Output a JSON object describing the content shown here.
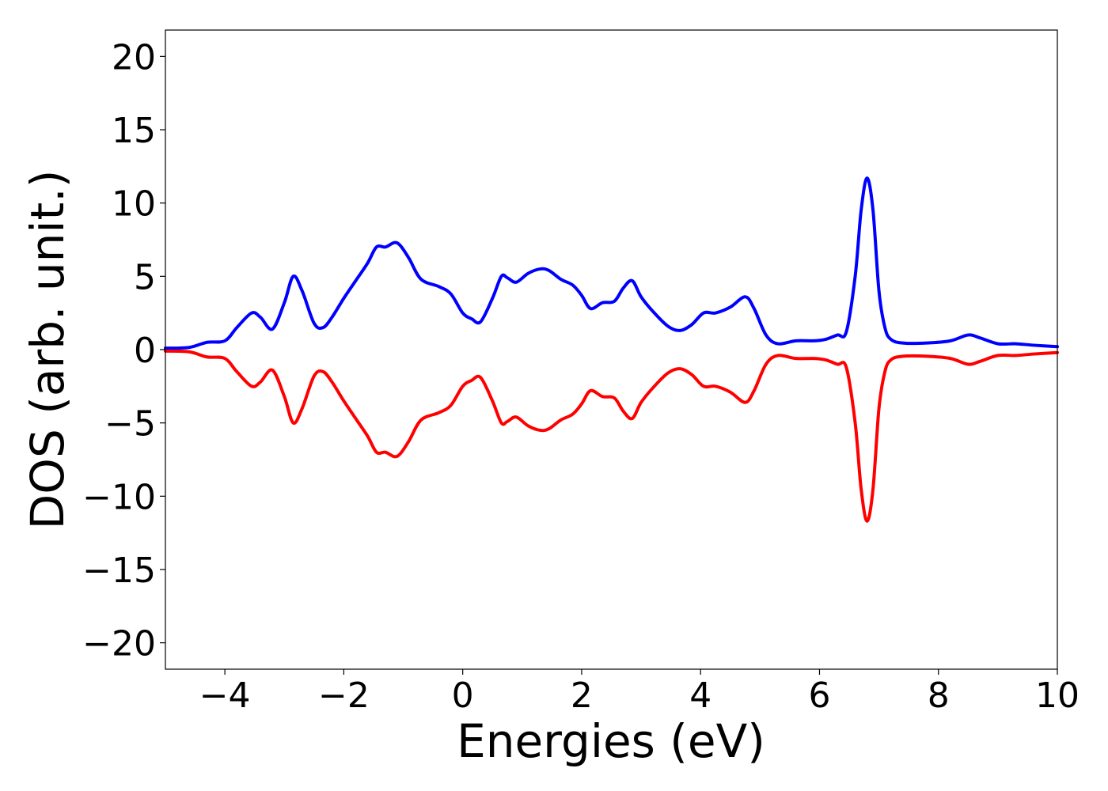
{
  "chart_data": {
    "type": "line",
    "title": "",
    "xlabel": "Energies (eV)",
    "ylabel": "DOS (arb. unit.)",
    "xlim": [
      -5,
      10
    ],
    "ylim": [
      -21.8,
      21.8
    ],
    "xticks": [
      -4,
      -2,
      0,
      2,
      4,
      6,
      8,
      10
    ],
    "yticks": [
      -20,
      -15,
      -10,
      -5,
      0,
      5,
      10,
      15,
      20
    ],
    "xtick_labels": [
      "−4",
      "−2",
      "0",
      "2",
      "4",
      "6",
      "8",
      "10"
    ],
    "ytick_labels": [
      "−20",
      "−15",
      "−10",
      "−5",
      "0",
      "5",
      "10",
      "15",
      "20"
    ],
    "grid": false,
    "legend": "none",
    "series": [
      {
        "color": "#0000ff",
        "x": [
          -5.0,
          -4.6,
          -4.3,
          -4.0,
          -3.8,
          -3.55,
          -3.4,
          -3.2,
          -3.0,
          -2.85,
          -2.7,
          -2.5,
          -2.35,
          -2.2,
          -2.0,
          -1.8,
          -1.6,
          -1.45,
          -1.3,
          -1.15,
          -1.05,
          -0.9,
          -0.7,
          -0.4,
          -0.2,
          0.0,
          0.15,
          0.3,
          0.5,
          0.65,
          0.75,
          0.9,
          1.1,
          1.3,
          1.45,
          1.65,
          1.85,
          2.0,
          2.15,
          2.35,
          2.55,
          2.7,
          2.85,
          3.0,
          3.2,
          3.45,
          3.65,
          3.85,
          4.05,
          4.25,
          4.5,
          4.75,
          4.9,
          5.1,
          5.3,
          5.6,
          5.9,
          6.1,
          6.3,
          6.45,
          6.6,
          6.7,
          6.8,
          6.9,
          7.0,
          7.1,
          7.2,
          7.4,
          7.8,
          8.2,
          8.5,
          8.7,
          9.0,
          9.3,
          9.6,
          10.0
        ],
        "values": [
          0.1,
          0.15,
          0.5,
          0.6,
          1.5,
          2.5,
          2.2,
          1.4,
          3.2,
          5.0,
          4.0,
          1.8,
          1.5,
          2.2,
          3.5,
          4.7,
          5.9,
          7.0,
          7.0,
          7.3,
          7.1,
          6.2,
          4.8,
          4.3,
          3.8,
          2.5,
          2.1,
          1.9,
          3.5,
          5.0,
          4.9,
          4.6,
          5.2,
          5.5,
          5.4,
          4.8,
          4.4,
          3.7,
          2.8,
          3.2,
          3.3,
          4.2,
          4.7,
          3.6,
          2.6,
          1.6,
          1.3,
          1.7,
          2.5,
          2.5,
          2.9,
          3.6,
          2.8,
          1.0,
          0.4,
          0.6,
          0.6,
          0.7,
          1.0,
          1.2,
          5.0,
          9.5,
          11.7,
          9.5,
          4.0,
          1.5,
          0.7,
          0.45,
          0.45,
          0.6,
          1.0,
          0.8,
          0.4,
          0.4,
          0.3,
          0.2
        ]
      },
      {
        "color": "#ff0000",
        "x": [
          -5.0,
          -4.6,
          -4.3,
          -4.0,
          -3.8,
          -3.55,
          -3.4,
          -3.2,
          -3.0,
          -2.85,
          -2.7,
          -2.5,
          -2.35,
          -2.2,
          -2.0,
          -1.8,
          -1.6,
          -1.45,
          -1.3,
          -1.15,
          -1.05,
          -0.9,
          -0.7,
          -0.4,
          -0.2,
          0.0,
          0.15,
          0.3,
          0.5,
          0.65,
          0.75,
          0.9,
          1.1,
          1.3,
          1.45,
          1.65,
          1.85,
          2.0,
          2.15,
          2.35,
          2.55,
          2.7,
          2.85,
          3.0,
          3.2,
          3.45,
          3.65,
          3.85,
          4.05,
          4.25,
          4.5,
          4.75,
          4.9,
          5.1,
          5.3,
          5.6,
          5.9,
          6.1,
          6.3,
          6.45,
          6.6,
          6.7,
          6.8,
          6.9,
          7.0,
          7.1,
          7.2,
          7.4,
          7.8,
          8.2,
          8.5,
          8.7,
          9.0,
          9.3,
          9.6,
          10.0
        ],
        "values": [
          -0.1,
          -0.15,
          -0.5,
          -0.6,
          -1.5,
          -2.5,
          -2.2,
          -1.4,
          -3.2,
          -5.0,
          -4.0,
          -1.8,
          -1.5,
          -2.2,
          -3.5,
          -4.7,
          -5.9,
          -7.0,
          -7.0,
          -7.3,
          -7.1,
          -6.2,
          -4.8,
          -4.3,
          -3.8,
          -2.5,
          -2.1,
          -1.9,
          -3.5,
          -5.0,
          -4.9,
          -4.6,
          -5.2,
          -5.5,
          -5.4,
          -4.8,
          -4.4,
          -3.7,
          -2.8,
          -3.2,
          -3.3,
          -4.2,
          -4.7,
          -3.6,
          -2.6,
          -1.6,
          -1.3,
          -1.7,
          -2.5,
          -2.5,
          -2.9,
          -3.6,
          -2.8,
          -1.0,
          -0.4,
          -0.6,
          -0.6,
          -0.7,
          -1.0,
          -1.2,
          -5.0,
          -9.5,
          -11.7,
          -9.5,
          -4.0,
          -1.5,
          -0.7,
          -0.45,
          -0.45,
          -0.6,
          -1.0,
          -0.8,
          -0.4,
          -0.4,
          -0.3,
          -0.2
        ]
      }
    ]
  }
}
